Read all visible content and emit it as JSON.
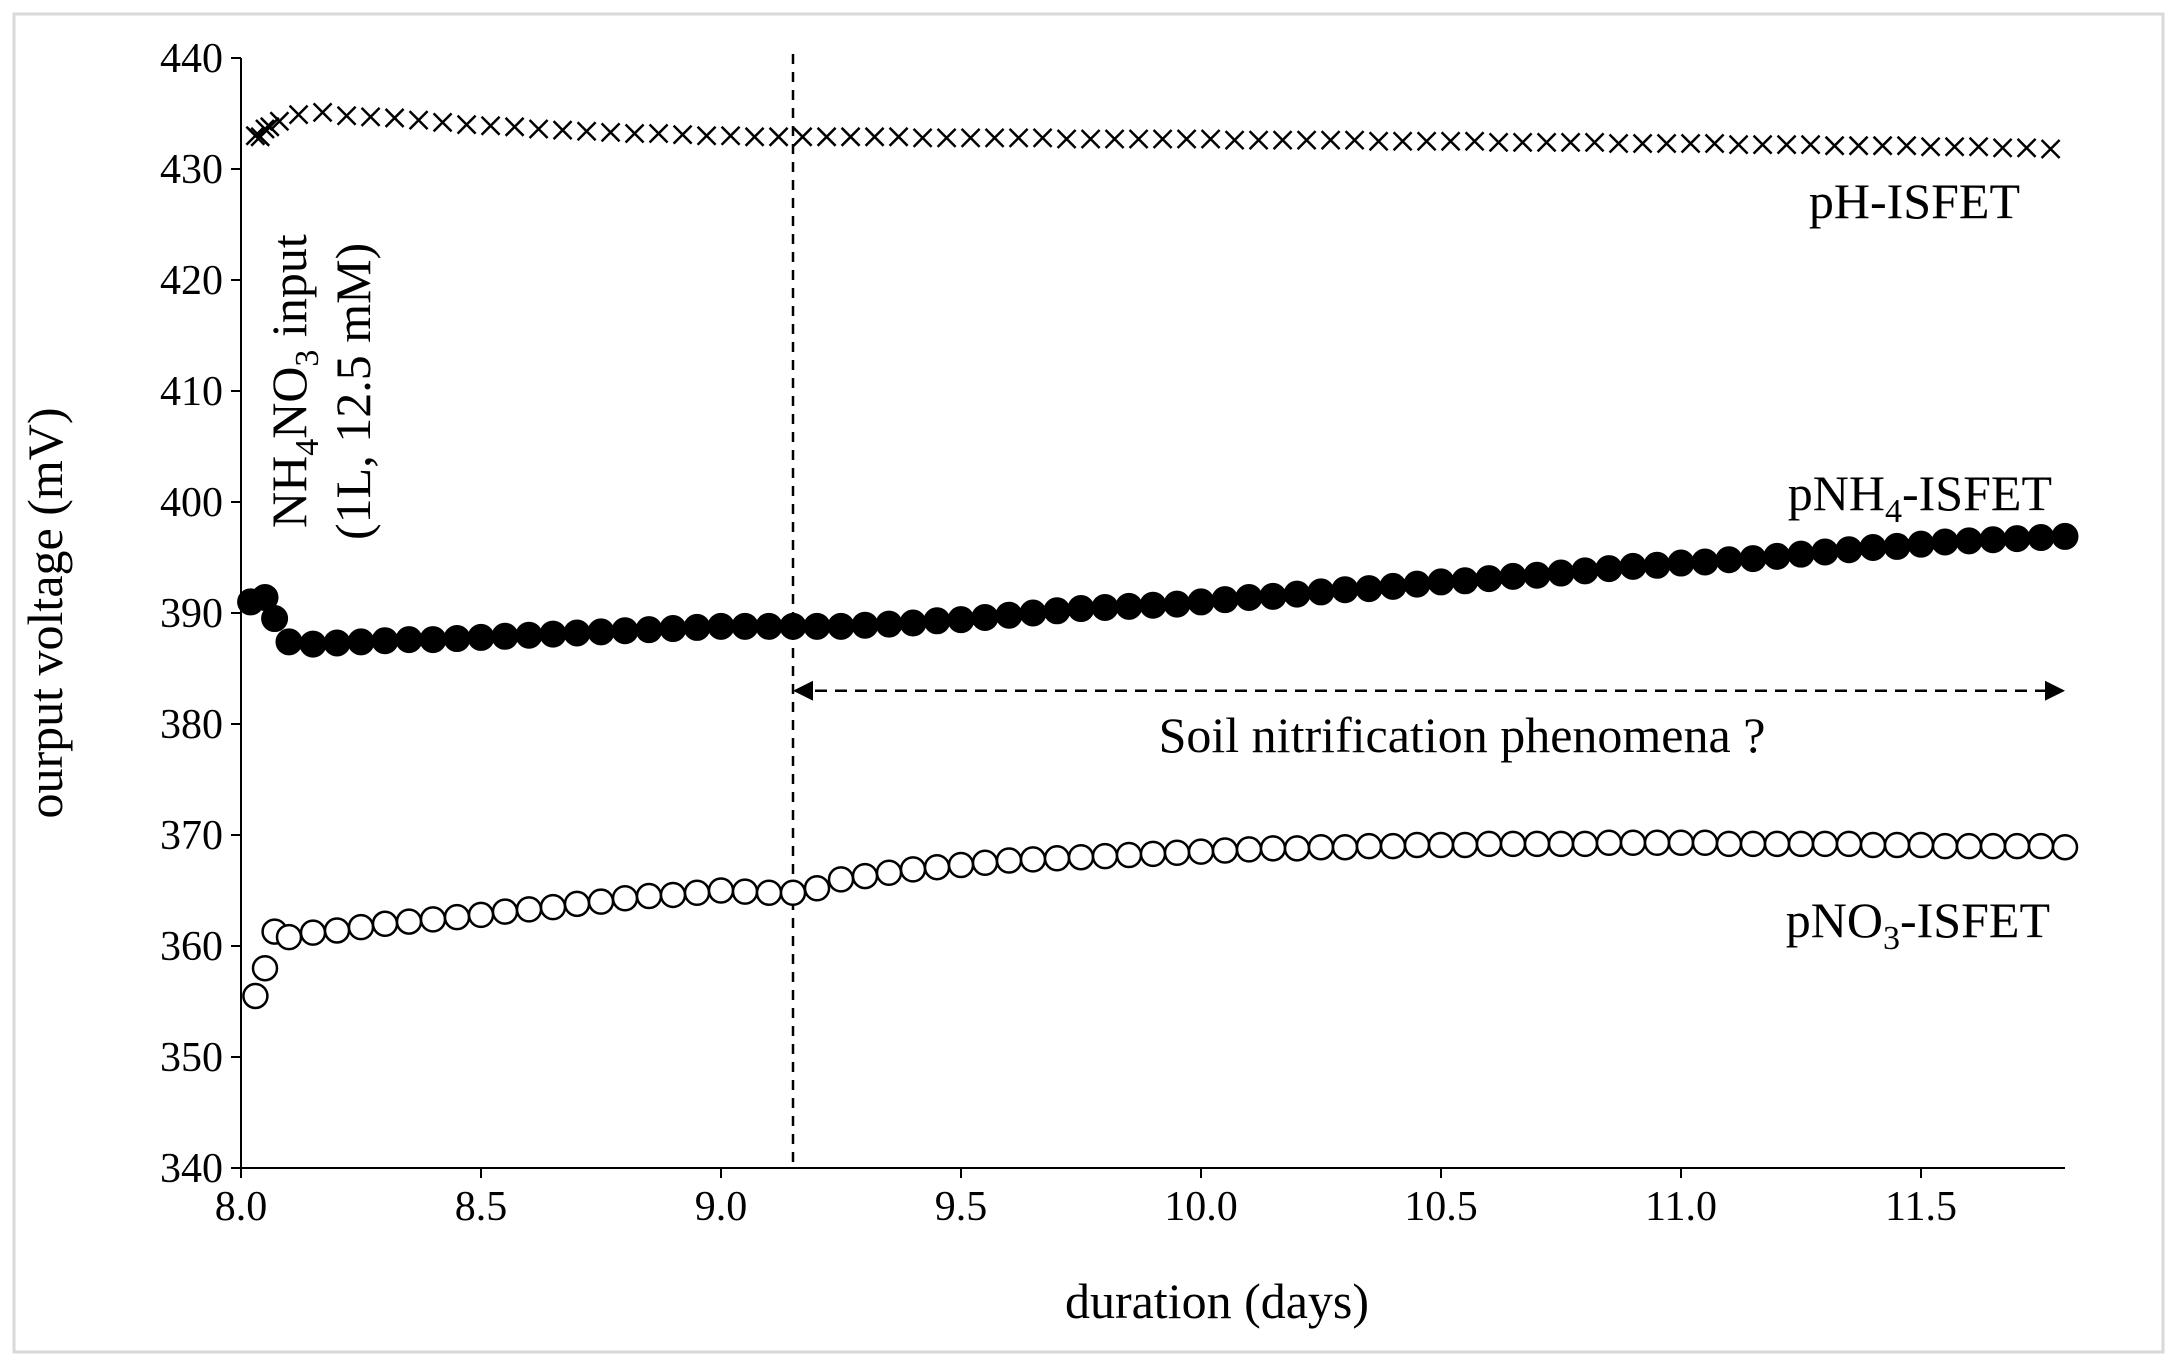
{
  "chart_data": {
    "type": "scatter",
    "title": "",
    "xlabel": "duration (days)",
    "ylabel": "ourput voltage (mV)",
    "xlim": [
      8.0,
      11.8
    ],
    "ylim": [
      340,
      440
    ],
    "x_ticks": [
      8.0,
      8.5,
      9.0,
      9.5,
      10.0,
      10.5,
      11.0,
      11.5
    ],
    "x_tick_labels": [
      "8.0",
      "8.5",
      "9.0",
      "9.5",
      "10.0",
      "10.5",
      "11.0",
      "11.5"
    ],
    "y_ticks": [
      340,
      350,
      360,
      370,
      380,
      390,
      400,
      410,
      420,
      430,
      440
    ],
    "y_tick_labels": [
      "340",
      "350",
      "360",
      "370",
      "380",
      "390",
      "400",
      "410",
      "420",
      "430",
      "440"
    ],
    "grid": false,
    "legend": "none (series labelled inline)",
    "series": [
      {
        "name": "pH-ISFET",
        "marker": "x",
        "label": {
          "text": "pH-ISFET",
          "sub": "",
          "suffix": ""
        },
        "x": [
          8.03,
          8.04,
          8.05,
          8.06,
          8.08,
          8.12,
          8.17,
          8.22,
          8.27,
          8.32,
          8.37,
          8.42,
          8.47,
          8.52,
          8.57,
          8.62,
          8.67,
          8.72,
          8.77,
          8.82,
          8.87,
          8.92,
          8.97,
          9.02,
          9.07,
          9.12,
          9.17,
          9.22,
          9.27,
          9.32,
          9.37,
          9.42,
          9.47,
          9.52,
          9.57,
          9.62,
          9.67,
          9.72,
          9.77,
          9.82,
          9.87,
          9.92,
          9.97,
          10.02,
          10.07,
          10.12,
          10.17,
          10.22,
          10.27,
          10.32,
          10.37,
          10.42,
          10.47,
          10.52,
          10.57,
          10.62,
          10.67,
          10.72,
          10.77,
          10.82,
          10.87,
          10.92,
          10.97,
          11.02,
          11.07,
          11.12,
          11.17,
          11.22,
          11.27,
          11.32,
          11.37,
          11.42,
          11.47,
          11.52,
          11.57,
          11.62,
          11.67,
          11.72,
          11.77
        ],
        "y": [
          433.0,
          432.9,
          433.6,
          433.8,
          434.3,
          434.9,
          435.1,
          434.8,
          434.7,
          434.6,
          434.4,
          434.2,
          434.0,
          433.9,
          433.8,
          433.6,
          433.5,
          433.4,
          433.3,
          433.2,
          433.2,
          433.1,
          433.0,
          433.0,
          432.9,
          432.9,
          432.9,
          432.9,
          432.9,
          432.9,
          432.9,
          432.8,
          432.8,
          432.8,
          432.8,
          432.8,
          432.8,
          432.7,
          432.7,
          432.7,
          432.7,
          432.7,
          432.7,
          432.7,
          432.6,
          432.6,
          432.6,
          432.6,
          432.6,
          432.6,
          432.5,
          432.5,
          432.5,
          432.5,
          432.5,
          432.4,
          432.4,
          432.4,
          432.4,
          432.4,
          432.3,
          432.3,
          432.3,
          432.3,
          432.3,
          432.2,
          432.2,
          432.2,
          432.2,
          432.1,
          432.1,
          432.1,
          432.1,
          432.0,
          432.0,
          432.0,
          431.9,
          431.9,
          431.8
        ]
      },
      {
        "name": "pNH4-ISFET",
        "marker": "filled-circle",
        "label": {
          "text": "pNH",
          "sub": "4",
          "suffix": "-ISFET"
        },
        "x": [
          8.02,
          8.05,
          8.07,
          8.1,
          8.15,
          8.2,
          8.25,
          8.3,
          8.35,
          8.4,
          8.45,
          8.5,
          8.55,
          8.6,
          8.65,
          8.7,
          8.75,
          8.8,
          8.85,
          8.9,
          8.95,
          9.0,
          9.05,
          9.1,
          9.15,
          9.2,
          9.25,
          9.3,
          9.35,
          9.4,
          9.45,
          9.5,
          9.55,
          9.6,
          9.65,
          9.7,
          9.75,
          9.8,
          9.85,
          9.9,
          9.95,
          10.0,
          10.05,
          10.1,
          10.15,
          10.2,
          10.25,
          10.3,
          10.35,
          10.4,
          10.45,
          10.5,
          10.55,
          10.6,
          10.65,
          10.7,
          10.75,
          10.8,
          10.85,
          10.9,
          10.95,
          11.0,
          11.05,
          11.1,
          11.15,
          11.2,
          11.25,
          11.3,
          11.35,
          11.4,
          11.45,
          11.5,
          11.55,
          11.6,
          11.65,
          11.7,
          11.75,
          11.8
        ],
        "y": [
          391.0,
          391.4,
          389.5,
          387.4,
          387.2,
          387.3,
          387.4,
          387.5,
          387.6,
          387.6,
          387.7,
          387.8,
          387.9,
          388.0,
          388.1,
          388.2,
          388.3,
          388.4,
          388.5,
          388.6,
          388.7,
          388.8,
          388.8,
          388.8,
          388.8,
          388.8,
          388.8,
          388.9,
          389.0,
          389.1,
          389.3,
          389.4,
          389.6,
          389.8,
          390.0,
          390.2,
          390.4,
          390.5,
          390.6,
          390.7,
          390.8,
          391.0,
          391.2,
          391.4,
          391.5,
          391.7,
          391.9,
          392.1,
          392.2,
          392.4,
          392.6,
          392.8,
          392.9,
          393.1,
          393.3,
          393.4,
          393.6,
          393.8,
          394.0,
          394.2,
          394.3,
          394.5,
          394.6,
          394.8,
          394.9,
          395.1,
          395.3,
          395.5,
          395.7,
          395.9,
          396.0,
          396.2,
          396.4,
          396.5,
          396.6,
          396.7,
          396.8,
          396.9
        ]
      },
      {
        "name": "pNO3-ISFET",
        "marker": "open-circle",
        "label": {
          "text": "pNO",
          "sub": "3",
          "suffix": "-ISFET"
        },
        "x": [
          8.03,
          8.05,
          8.07,
          8.1,
          8.15,
          8.2,
          8.25,
          8.3,
          8.35,
          8.4,
          8.45,
          8.5,
          8.55,
          8.6,
          8.65,
          8.7,
          8.75,
          8.8,
          8.85,
          8.9,
          8.95,
          9.0,
          9.05,
          9.1,
          9.15,
          9.2,
          9.25,
          9.3,
          9.35,
          9.4,
          9.45,
          9.5,
          9.55,
          9.6,
          9.65,
          9.7,
          9.75,
          9.8,
          9.85,
          9.9,
          9.95,
          10.0,
          10.05,
          10.1,
          10.15,
          10.2,
          10.25,
          10.3,
          10.35,
          10.4,
          10.45,
          10.5,
          10.55,
          10.6,
          10.65,
          10.7,
          10.75,
          10.8,
          10.85,
          10.9,
          10.95,
          11.0,
          11.05,
          11.1,
          11.15,
          11.2,
          11.25,
          11.3,
          11.35,
          11.4,
          11.45,
          11.5,
          11.55,
          11.6,
          11.65,
          11.7,
          11.75,
          11.8
        ],
        "y": [
          355.5,
          358.0,
          361.3,
          360.8,
          361.2,
          361.4,
          361.7,
          362.0,
          362.2,
          362.4,
          362.6,
          362.8,
          363.1,
          363.3,
          363.5,
          363.8,
          364.0,
          364.3,
          364.5,
          364.6,
          364.8,
          365.0,
          364.9,
          364.8,
          364.8,
          365.2,
          366.0,
          366.3,
          366.6,
          366.9,
          367.1,
          367.3,
          367.5,
          367.7,
          367.8,
          367.9,
          368.0,
          368.1,
          368.2,
          368.3,
          368.4,
          368.5,
          368.6,
          368.7,
          368.8,
          368.8,
          368.9,
          368.9,
          369.0,
          369.0,
          369.1,
          369.1,
          369.1,
          369.2,
          369.2,
          369.2,
          369.2,
          369.2,
          369.3,
          369.3,
          369.3,
          369.3,
          369.3,
          369.2,
          369.2,
          369.2,
          369.2,
          369.2,
          369.2,
          369.1,
          369.1,
          369.1,
          369.0,
          369.0,
          369.0,
          369.0,
          369.0,
          368.9
        ]
      }
    ],
    "annotations": {
      "input_marker_x": 9.15,
      "input_label_line1": {
        "text": "NH",
        "sub1": "4",
        "mid": "NO",
        "sub2": "3",
        "suffix": " input"
      },
      "input_label_line2": "(1L, 12.5 mM)",
      "nitrification_arrow": {
        "x_start": 9.15,
        "x_end": 11.8,
        "y": 383
      },
      "nitrification_label": "Soil nitrification phenomena ?"
    }
  }
}
